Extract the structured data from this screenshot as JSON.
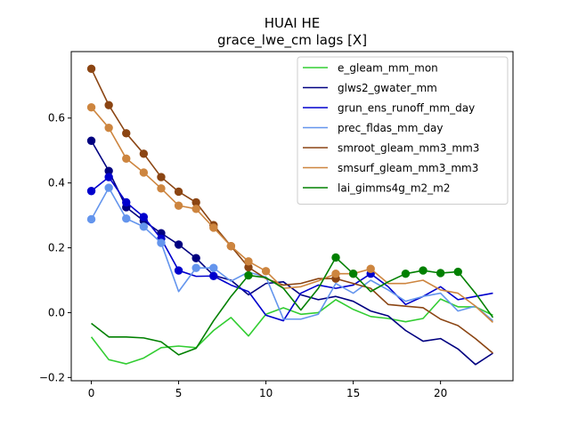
{
  "chart_data": {
    "type": "line",
    "title": "HUAI HE",
    "subtitle": "grace_lwe_cm lags [X]",
    "xlabel": "",
    "ylabel": "",
    "xlim": [
      -1.15,
      24.15
    ],
    "ylim": [
      -0.21,
      0.805
    ],
    "xticks": [
      0,
      5,
      10,
      15,
      20
    ],
    "yticks": [
      -0.2,
      0.0,
      0.2,
      0.4,
      0.6
    ],
    "ytick_labels": [
      "−0.2",
      "0.0",
      "0.2",
      "0.4",
      "0.6"
    ],
    "grid": false,
    "legend_position": "top-right",
    "x": [
      0,
      1,
      2,
      3,
      4,
      5,
      6,
      7,
      8,
      9,
      10,
      11,
      12,
      13,
      14,
      15,
      16,
      17,
      18,
      19,
      20,
      21,
      22,
      23
    ],
    "series": [
      {
        "name": "e_gleam_mm_mon",
        "color": "#32cd32",
        "values": [
          -0.075,
          -0.145,
          -0.158,
          -0.14,
          -0.108,
          -0.103,
          -0.108,
          -0.055,
          -0.015,
          -0.072,
          -0.005,
          0.015,
          -0.005,
          0.0,
          0.04,
          0.01,
          -0.012,
          -0.018,
          -0.028,
          -0.018,
          0.042,
          0.018,
          0.018,
          -0.008
        ],
        "markers": []
      },
      {
        "name": "glws2_gwater_mm",
        "color": "#000080",
        "values": [
          0.53,
          0.437,
          0.325,
          0.283,
          0.245,
          0.21,
          0.168,
          0.115,
          0.1,
          0.055,
          0.09,
          0.095,
          0.055,
          0.04,
          0.05,
          0.035,
          0.005,
          -0.01,
          -0.055,
          -0.088,
          -0.08,
          -0.112,
          -0.16,
          -0.125
        ],
        "markers": [
          0,
          1,
          2,
          3,
          4,
          5,
          6
        ]
      },
      {
        "name": "grun_ens_runoff_mm_day",
        "color": "#0000cd",
        "values": [
          0.375,
          0.418,
          0.34,
          0.295,
          0.228,
          0.13,
          0.112,
          0.113,
          0.085,
          0.065,
          -0.008,
          -0.025,
          0.06,
          0.085,
          0.075,
          0.085,
          0.12,
          0.08,
          0.025,
          0.05,
          0.08,
          0.04,
          0.05,
          0.06
        ],
        "markers": [
          0,
          1,
          2,
          3,
          4,
          5,
          7,
          16
        ]
      },
      {
        "name": "prec_fldas_mm_day",
        "color": "#6495ed",
        "values": [
          0.288,
          0.385,
          0.29,
          0.265,
          0.215,
          0.065,
          0.138,
          0.138,
          0.097,
          0.125,
          0.11,
          -0.02,
          -0.02,
          -0.005,
          0.09,
          0.06,
          0.1,
          0.07,
          0.035,
          0.05,
          0.06,
          0.005,
          0.02,
          -0.025
        ],
        "markers": [
          0,
          1,
          2,
          3,
          4,
          6,
          7
        ]
      },
      {
        "name": "smroot_gleam_mm3_mm3",
        "color": "#8b4513",
        "values": [
          0.752,
          0.64,
          0.553,
          0.49,
          0.418,
          0.373,
          0.34,
          0.27,
          0.205,
          0.14,
          0.105,
          0.085,
          0.09,
          0.105,
          0.105,
          0.09,
          0.075,
          0.025,
          0.02,
          0.015,
          -0.02,
          -0.04,
          -0.08,
          -0.125
        ],
        "markers": [
          0,
          1,
          2,
          3,
          4,
          5,
          6,
          7,
          8,
          9,
          14
        ]
      },
      {
        "name": "smsurf_gleam_mm3_mm3",
        "color": "#cd853f",
        "values": [
          0.633,
          0.57,
          0.475,
          0.432,
          0.383,
          0.33,
          0.32,
          0.262,
          0.205,
          0.158,
          0.128,
          0.075,
          0.08,
          0.098,
          0.12,
          0.12,
          0.135,
          0.09,
          0.09,
          0.1,
          0.07,
          0.06,
          0.02,
          -0.03
        ],
        "markers": [
          0,
          1,
          2,
          3,
          4,
          5,
          6,
          7,
          8,
          9,
          10,
          14,
          15,
          16
        ]
      },
      {
        "name": "lai_gimms4g_m2_m2",
        "color": "#008000",
        "values": [
          -0.033,
          -0.075,
          -0.075,
          -0.078,
          -0.09,
          -0.13,
          -0.11,
          -0.025,
          0.05,
          0.115,
          0.108,
          0.075,
          0.008,
          0.075,
          0.17,
          0.12,
          0.065,
          0.095,
          0.12,
          0.13,
          0.122,
          0.126,
          0.06,
          -0.015
        ],
        "markers": [
          9,
          14,
          15,
          18,
          19,
          20,
          21
        ]
      }
    ]
  }
}
